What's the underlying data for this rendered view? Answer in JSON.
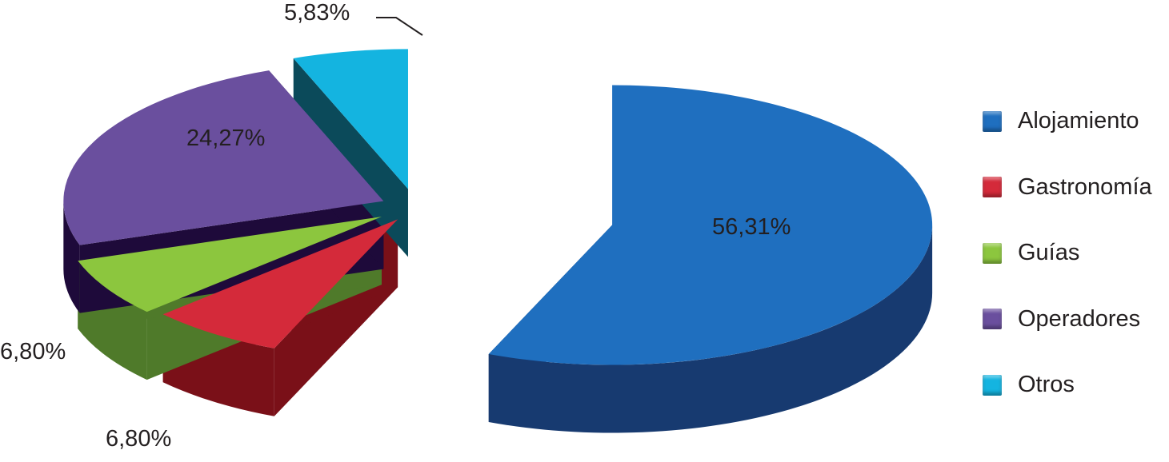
{
  "chart_data": {
    "type": "pie",
    "style": "3d-exploded",
    "categories": [
      "Alojamiento",
      "Gastronomía",
      "Guías",
      "Operadores",
      "Otros"
    ],
    "values": [
      56.31,
      6.8,
      6.8,
      24.27,
      5.83
    ],
    "data_labels": [
      "56,31%",
      "6,80%",
      "6,80%",
      "24,27%",
      "5,83%"
    ],
    "colors": [
      "#1f6fbf",
      "#d42a3a",
      "#8cc63e",
      "#6a4f9e",
      "#14b4e0"
    ],
    "side_colors": [
      "#173a70",
      "#7a1018",
      "#4f7a2a",
      "#1e0a3a",
      "#0b4a5a"
    ],
    "legend_position": "right"
  }
}
